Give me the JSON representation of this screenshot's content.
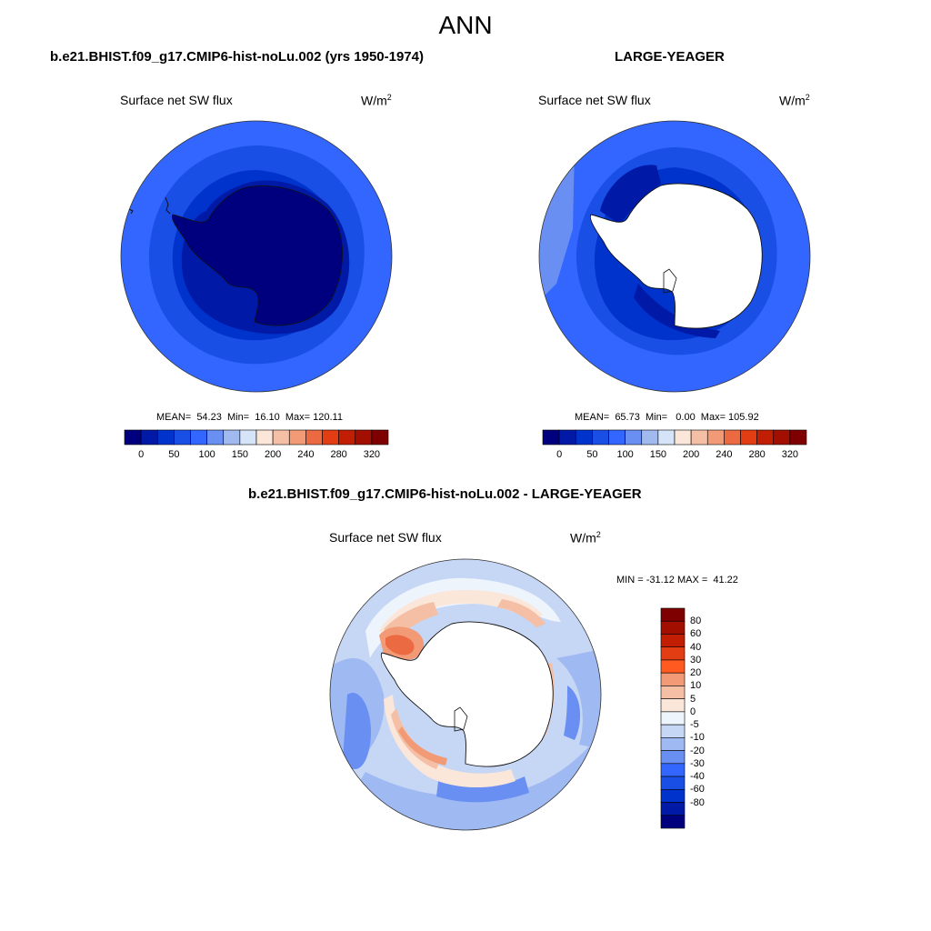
{
  "page": {
    "title": "ANN",
    "variable": "Surface net SW flux",
    "units_base": "W/m",
    "units_exp": "2"
  },
  "panels": {
    "test": {
      "title": "b.e21.BHIST.f09_g17.CMIP6-hist-noLu.002 (yrs 1950-1974)",
      "stats": "MEAN=  54.23  Min=  16.10  Max= 120.11"
    },
    "ref": {
      "title": "LARGE-YEAGER",
      "stats": "MEAN=  65.73  Min=   0.00  Max= 105.92"
    },
    "diff": {
      "title": "b.e21.BHIST.f09_g17.CMIP6-hist-noLu.002 - LARGE-YEAGER",
      "stats": "MIN = -31.12 MAX =  41.22"
    }
  },
  "colorbars": {
    "abs": {
      "colors": [
        "#00007f",
        "#0019a6",
        "#0033cc",
        "#1a4fe6",
        "#3366ff",
        "#6a8ff2",
        "#a0baf0",
        "#d5e4f8",
        "#fbe6da",
        "#f5bfa5",
        "#f19a75",
        "#eb6a42",
        "#e33d14",
        "#c21e04",
        "#a20f00",
        "#7f0000"
      ],
      "labels": [
        "0",
        "50",
        "100",
        "150",
        "200",
        "240",
        "280",
        "320"
      ]
    },
    "diff": {
      "colors": [
        "#7f0000",
        "#a20f00",
        "#c21e04",
        "#e33d14",
        "#ff5a20",
        "#f19a75",
        "#f5bfa5",
        "#fbe6da",
        "#eef4fb",
        "#c6d7f5",
        "#9fbaf2",
        "#6a8ff2",
        "#3366ff",
        "#1a4fe6",
        "#0033cc",
        "#0019a6",
        "#00007f"
      ],
      "labels": [
        "80",
        "60",
        "40",
        "30",
        "20",
        "10",
        "5",
        "0",
        "-5",
        "-10",
        "-20",
        "-30",
        "-40",
        "-60",
        "-80"
      ]
    }
  }
}
